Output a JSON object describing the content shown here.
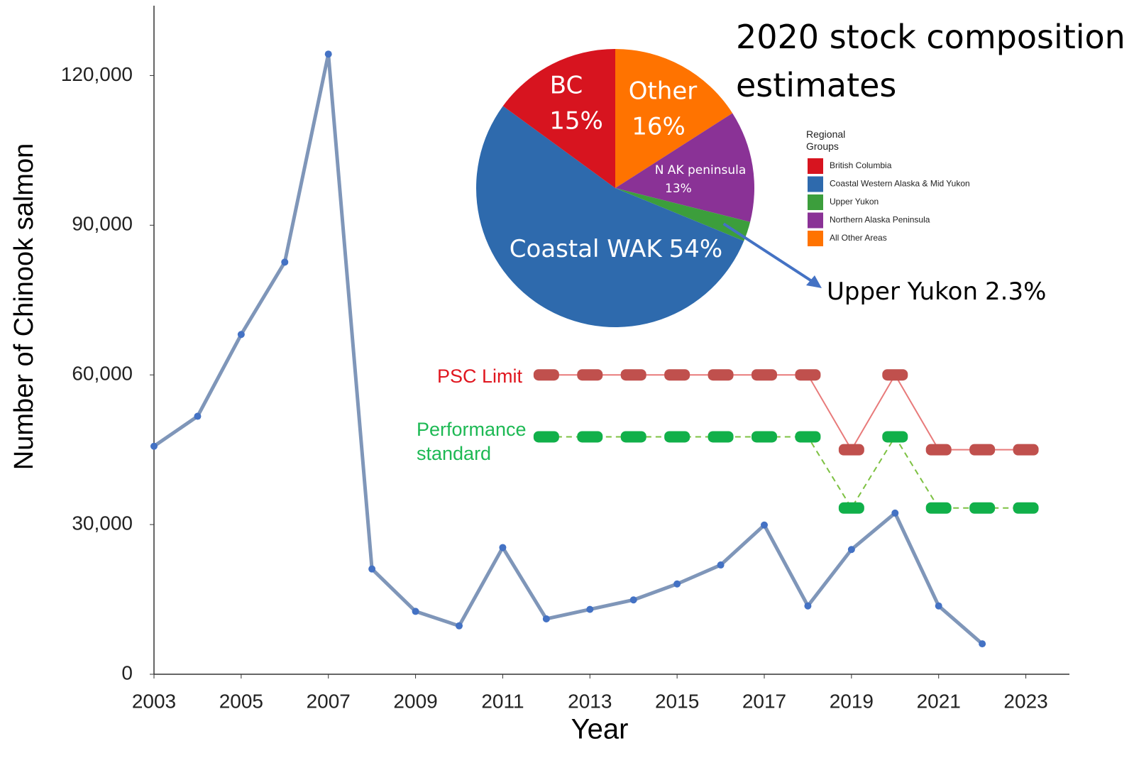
{
  "chart_data": [
    {
      "type": "line",
      "ylabel": "Number of Chinook salmon",
      "xlabel": "Year",
      "x": [
        2003,
        2004,
        2005,
        2006,
        2007,
        2008,
        2009,
        2010,
        2011,
        2012,
        2013,
        2014,
        2015,
        2016,
        2017,
        2018,
        2019,
        2020,
        2021,
        2022,
        2023
      ],
      "series": [
        {
          "color": "#7f96b9",
          "marker_color": "#4472c4",
          "values": [
            45700,
            51700,
            68100,
            82600,
            124300,
            21100,
            12600,
            9700,
            25400,
            11100,
            13000,
            14900,
            18100,
            21900,
            29900,
            13700,
            25000,
            32300,
            13700,
            6100,
            null
          ]
        },
        {
          "name": "PSC Limit",
          "color": "#e87a7a",
          "marker_color": "#c0504d",
          "values": [
            null,
            null,
            null,
            null,
            null,
            null,
            null,
            null,
            null,
            60000,
            60000,
            60000,
            60000,
            60000,
            60000,
            60000,
            45000,
            60000,
            45000,
            45000,
            45000
          ]
        },
        {
          "name": "Performance standard",
          "color": "#7dc142",
          "marker_color": "#11b04a",
          "dashed": true,
          "values": [
            null,
            null,
            null,
            null,
            null,
            null,
            null,
            null,
            null,
            47591,
            47591,
            47591,
            47591,
            47591,
            47591,
            47591,
            33318,
            47591,
            33318,
            33318,
            33318
          ]
        }
      ],
      "xlim": [
        2003,
        2024
      ],
      "xticks": [
        2003,
        2005,
        2007,
        2009,
        2011,
        2013,
        2015,
        2017,
        2019,
        2021,
        2023
      ],
      "ylim": [
        0,
        134000
      ],
      "yticks": [
        0,
        {
          "value": 30000,
          "label": "30,000"
        },
        {
          "value": 60000,
          "label": "60,000"
        },
        {
          "value": 90000,
          "label": "90,000"
        },
        {
          "value": 120000,
          "label": "120,000"
        }
      ],
      "grid": false
    },
    {
      "type": "pie",
      "title": "2020 stock composition estimates",
      "categories": [
        "Other",
        "N AK peninsula",
        "Upper Yukon",
        "Coastal WAK",
        "BC"
      ],
      "values": [
        16,
        13,
        2.3,
        54,
        15
      ],
      "value_labels": [
        "16%",
        "13%",
        "2.3%",
        "54%",
        "15%"
      ],
      "colors": [
        "#ff7300",
        "#8a3296",
        "#3c9e3c",
        "#2e6aad",
        "#d7141f"
      ],
      "legend": {
        "title": "Regional Groups",
        "items": [
          {
            "name": "British Columbia",
            "color": "#d7141f"
          },
          {
            "name": "Coastal Western Alaska & Mid Yukon",
            "color": "#2e6aad"
          },
          {
            "name": "Upper Yukon",
            "color": "#3c9e3c"
          },
          {
            "name": "Northern Alaska Peninsula",
            "color": "#8a3296"
          },
          {
            "name": "All Other Areas",
            "color": "#ff7300"
          }
        ]
      }
    }
  ]
}
